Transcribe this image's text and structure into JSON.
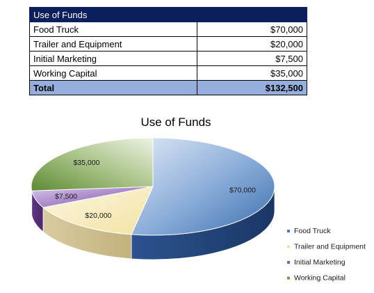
{
  "table": {
    "header": "Use of Funds",
    "rows": [
      {
        "label": "Food Truck",
        "amount": "$70,000"
      },
      {
        "label": "Trailer and Equipment",
        "amount": "$20,000"
      },
      {
        "label": "Initial Marketing",
        "amount": "$7,500"
      },
      {
        "label": "Working Capital",
        "amount": "$35,000"
      }
    ],
    "total": {
      "label": "Total",
      "amount": "$132,500"
    }
  },
  "chart_data": {
    "type": "pie",
    "title": "Use of Funds",
    "three_d": true,
    "legend_position": "right",
    "categories": [
      "Food Truck",
      "Trailer and Equipment",
      "Initial Marketing",
      "Working Capital"
    ],
    "values": [
      70000,
      20000,
      7500,
      35000
    ],
    "data_labels": [
      "$70,000",
      "$20,000",
      "$7,500",
      "$35,000"
    ],
    "colors": [
      "#4a7fbf",
      "#f1e3a8",
      "#8a5bb5",
      "#6f9a43"
    ]
  }
}
